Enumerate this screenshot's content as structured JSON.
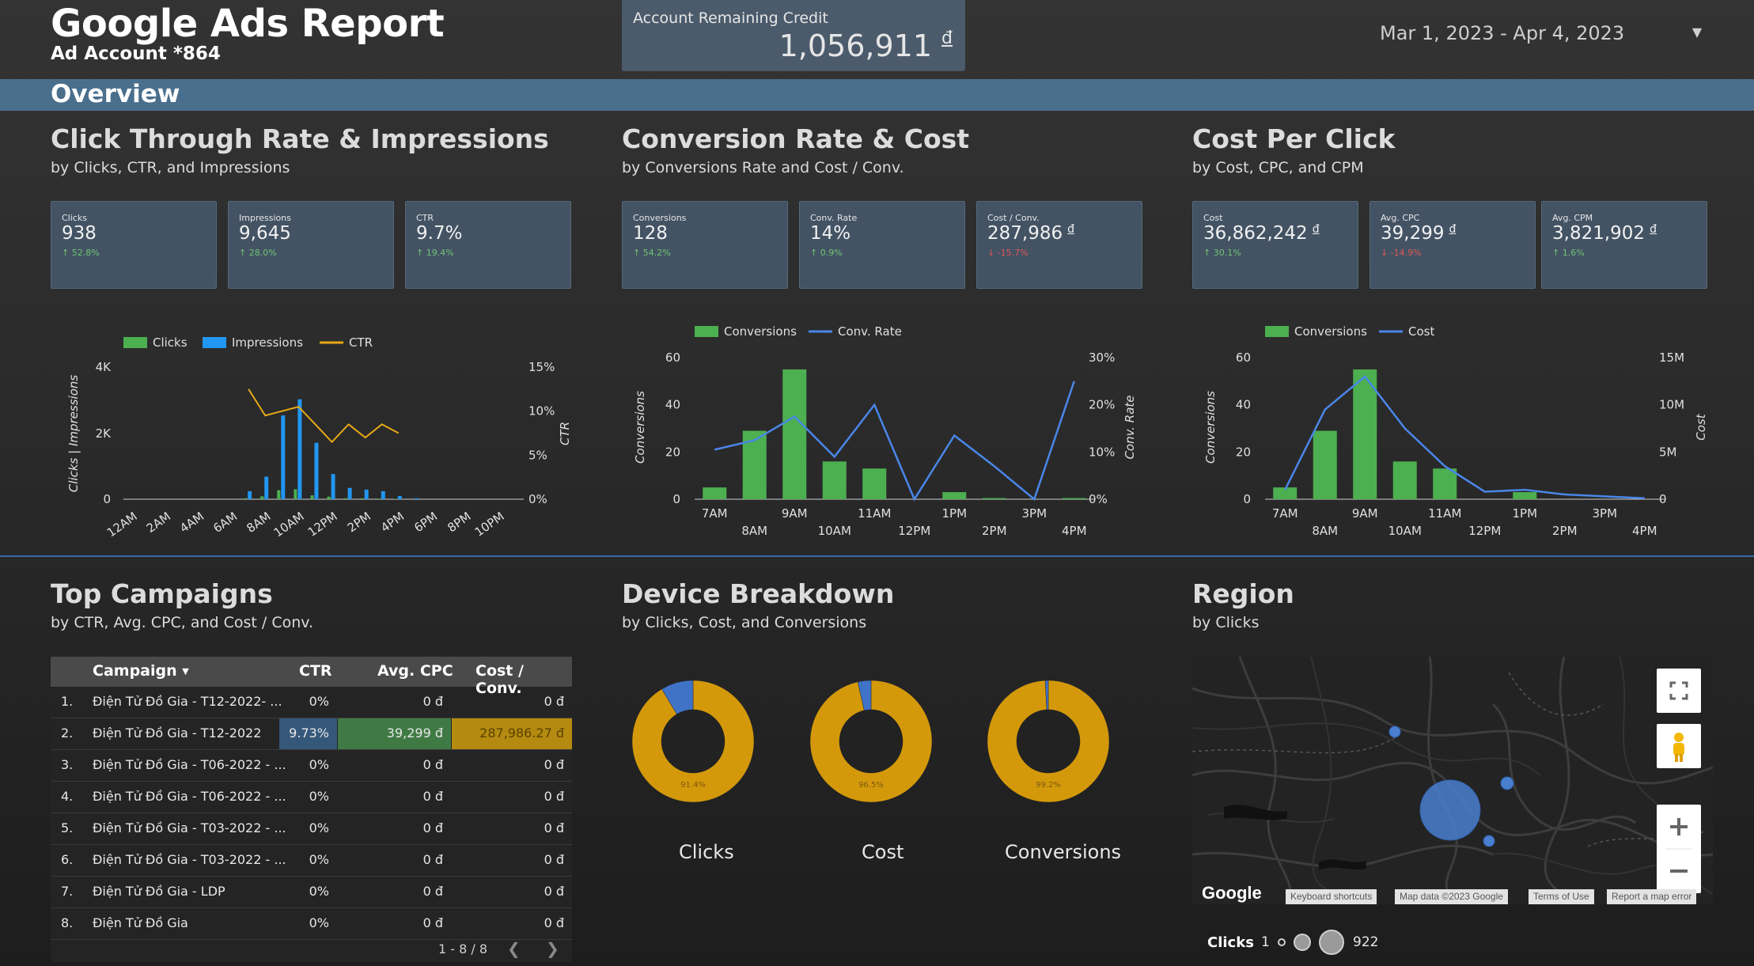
{
  "header": {
    "title": "Google Ads Report",
    "subtitle": "Ad Account *864",
    "credit_label": "Account Remaining Credit",
    "credit_value": "1,056,911",
    "currency": "đ",
    "date_range": "Mar 1, 2023 - Apr 4, 2023",
    "overview": "Overview"
  },
  "sections": {
    "ctr": {
      "title": "Click Through Rate & Impressions",
      "subtitle": "by Clicks, CTR, and Impressions"
    },
    "conv": {
      "title": "Conversion Rate & Cost",
      "subtitle": "by Conversions Rate and Cost / Conv."
    },
    "cpc": {
      "title": "Cost Per Click",
      "subtitle": "by Cost, CPC, and CPM"
    },
    "campaigns": {
      "title": "Top Campaigns",
      "subtitle": "by CTR, Avg. CPC, and Cost / Conv."
    },
    "device": {
      "title": "Device Breakdown",
      "subtitle": "by Clicks, Cost, and Conversions"
    },
    "region": {
      "title": "Region",
      "subtitle": "by Clicks"
    }
  },
  "kpis": {
    "ctr": [
      {
        "label": "Clicks",
        "value": "938",
        "delta": "↑ 52.8%",
        "dir": "up"
      },
      {
        "label": "Impressions",
        "value": "9,645",
        "delta": "↑ 28.0%",
        "dir": "up"
      },
      {
        "label": "CTR",
        "value": "9.7%",
        "delta": "↑ 19.4%",
        "dir": "up"
      }
    ],
    "conv": [
      {
        "label": "Conversions",
        "value": "128",
        "delta": "↑ 54.2%",
        "dir": "up"
      },
      {
        "label": "Conv. Rate",
        "value": "14%",
        "delta": "↑ 0.9%",
        "dir": "up"
      },
      {
        "label": "Cost / Conv.",
        "value": "287,986",
        "cur": "đ",
        "delta": "↓ -15.7%",
        "dir": "down"
      }
    ],
    "cpc": [
      {
        "label": "Cost",
        "value": "36,862,242",
        "cur": "đ",
        "delta": "↑ 30.1%",
        "dir": "up"
      },
      {
        "label": "Avg. CPC",
        "value": "39,299",
        "cur": "đ",
        "delta": "↓ -14.9%",
        "dir": "down"
      },
      {
        "label": "Avg. CPM",
        "value": "3,821,902",
        "cur": "đ",
        "delta": "↑ 1.6%",
        "dir": "up"
      }
    ]
  },
  "chart_data": [
    {
      "type": "bar",
      "legend": [
        "Clicks",
        "Impressions",
        "CTR"
      ],
      "colors": {
        "Clicks": "#4caf50",
        "Impressions": "#2196f3",
        "CTR": "#e6a817"
      },
      "ylabel": "Clicks | Impressions",
      "y2label": "CTR",
      "ylim": [
        0,
        4000
      ],
      "yticks": [
        "0",
        "2K",
        "4K"
      ],
      "y2ticks": [
        "0%",
        "5%",
        "10%",
        "15%"
      ],
      "x_tick_labels": [
        "12AM",
        "2AM",
        "4AM",
        "6AM",
        "8AM",
        "10AM",
        "12PM",
        "2PM",
        "4PM",
        "6PM",
        "8PM",
        "10PM"
      ],
      "hours": [
        7,
        8,
        9,
        10,
        11,
        12,
        13,
        14,
        15,
        16,
        17
      ],
      "series": [
        {
          "name": "Clicks",
          "values": [
            30,
            90,
            280,
            310,
            120,
            80,
            30,
            30,
            20,
            10,
            0
          ]
        },
        {
          "name": "Impressions",
          "values": [
            250,
            700,
            2600,
            3100,
            1750,
            780,
            350,
            300,
            250,
            100,
            30
          ]
        },
        {
          "name": "CTR",
          "values": [
            12.5,
            9.5,
            10.0,
            10.5,
            8.5,
            6.5,
            8.5,
            7.0,
            8.5,
            7.5,
            null
          ]
        }
      ]
    },
    {
      "type": "bar",
      "legend": [
        "Conversions",
        "Conv. Rate"
      ],
      "colors": {
        "Conversions": "#4caf50",
        "Conv. Rate": "#4a86e8"
      },
      "ylabel": "Conversions",
      "y2label": "Conv. Rate",
      "ylim": [
        0,
        60
      ],
      "yticks": [
        "0",
        "20",
        "40",
        "60"
      ],
      "y2ticks": [
        "0%",
        "10%",
        "20%",
        "30%"
      ],
      "categories": [
        "7AM",
        "8AM",
        "9AM",
        "10AM",
        "11AM",
        "12PM",
        "1PM",
        "2PM",
        "3PM",
        "4PM"
      ],
      "series": [
        {
          "name": "Conversions",
          "values": [
            5,
            29,
            55,
            16,
            13,
            0,
            3,
            0.5,
            0,
            0.5
          ]
        },
        {
          "name": "Conv. Rate",
          "values": [
            10.5,
            12.5,
            17.5,
            9.0,
            20.0,
            0,
            13.5,
            7.0,
            0,
            25.0
          ]
        }
      ]
    },
    {
      "type": "bar",
      "legend": [
        "Conversions",
        "Cost"
      ],
      "colors": {
        "Conversions": "#4caf50",
        "Cost": "#4a86e8"
      },
      "ylabel": "Conversions",
      "y2label": "Cost",
      "ylim": [
        0,
        60
      ],
      "yticks": [
        "0",
        "20",
        "40",
        "60"
      ],
      "y2ticks": [
        "0",
        "5M",
        "10M",
        "15M"
      ],
      "categories": [
        "7AM",
        "8AM",
        "9AM",
        "10AM",
        "11AM",
        "12PM",
        "1PM",
        "2PM",
        "3PM",
        "4PM"
      ],
      "series": [
        {
          "name": "Conversions",
          "values": [
            5,
            29,
            55,
            16,
            13,
            0,
            3,
            0,
            0,
            0
          ]
        },
        {
          "name": "Cost",
          "values": [
            1.0,
            9.5,
            13.0,
            7.5,
            3.5,
            0.8,
            1.0,
            0.5,
            0.3,
            0.1
          ]
        }
      ]
    },
    {
      "type": "pie",
      "charts": [
        {
          "name": "Clicks",
          "values": [
            91.4,
            8.6
          ],
          "label": "91.4%"
        },
        {
          "name": "Cost",
          "values": [
            96.5,
            3.5
          ],
          "label": "96.5%"
        },
        {
          "name": "Conversions",
          "values": [
            99.2,
            0.8
          ],
          "label": "99.2%"
        }
      ],
      "colors": [
        "#d4990a",
        "#3f73c8"
      ]
    }
  ],
  "campaigns": {
    "headers": [
      "Campaign",
      "CTR",
      "Avg. CPC",
      "Cost / Conv."
    ],
    "rows": [
      {
        "n": "1.",
        "name": "Điện Tử Đồ Gia - T12-2022- ...",
        "ctr": "0%",
        "cpc": "0 đ",
        "cpconv": "0 đ"
      },
      {
        "n": "2.",
        "name": "Điện Tử Đồ Gia - T12-2022",
        "ctr": "9.73%",
        "cpc": "39,299 đ",
        "cpconv": "287,986.27 đ"
      },
      {
        "n": "3.",
        "name": "Điện Tử Đồ Gia - T06-2022 - ...",
        "ctr": "0%",
        "cpc": "0 đ",
        "cpconv": "0 đ"
      },
      {
        "n": "4.",
        "name": "Điện Tử Đồ Gia - T06-2022 - ...",
        "ctr": "0%",
        "cpc": "0 đ",
        "cpconv": "0 đ"
      },
      {
        "n": "5.",
        "name": "Điện Tử Đồ Gia - T03-2022 - ...",
        "ctr": "0%",
        "cpc": "0 đ",
        "cpconv": "0 đ"
      },
      {
        "n": "6.",
        "name": "Điện Tử Đồ Gia - T03-2022 - ...",
        "ctr": "0%",
        "cpc": "0 đ",
        "cpconv": "0 đ"
      },
      {
        "n": "7.",
        "name": "Điện Tử Đồ Gia - LDP",
        "ctr": "0%",
        "cpc": "0 đ",
        "cpconv": "0 đ"
      },
      {
        "n": "8.",
        "name": "Điện Tử Đồ Gia",
        "ctr": "0%",
        "cpc": "0 đ",
        "cpconv": "0 đ"
      }
    ],
    "pager": "1 - 8 / 8"
  },
  "map": {
    "logo": "Google",
    "footer": [
      "Keyboard shortcuts",
      "Map data ©2023 Google",
      "Terms of Use",
      "Report a map error"
    ],
    "legend_label": "Clicks",
    "legend_min": "1",
    "legend_max": "922",
    "icons": [
      "fullscreen-icon",
      "pegman-icon",
      "zoom-in-icon",
      "zoom-out-icon"
    ]
  }
}
